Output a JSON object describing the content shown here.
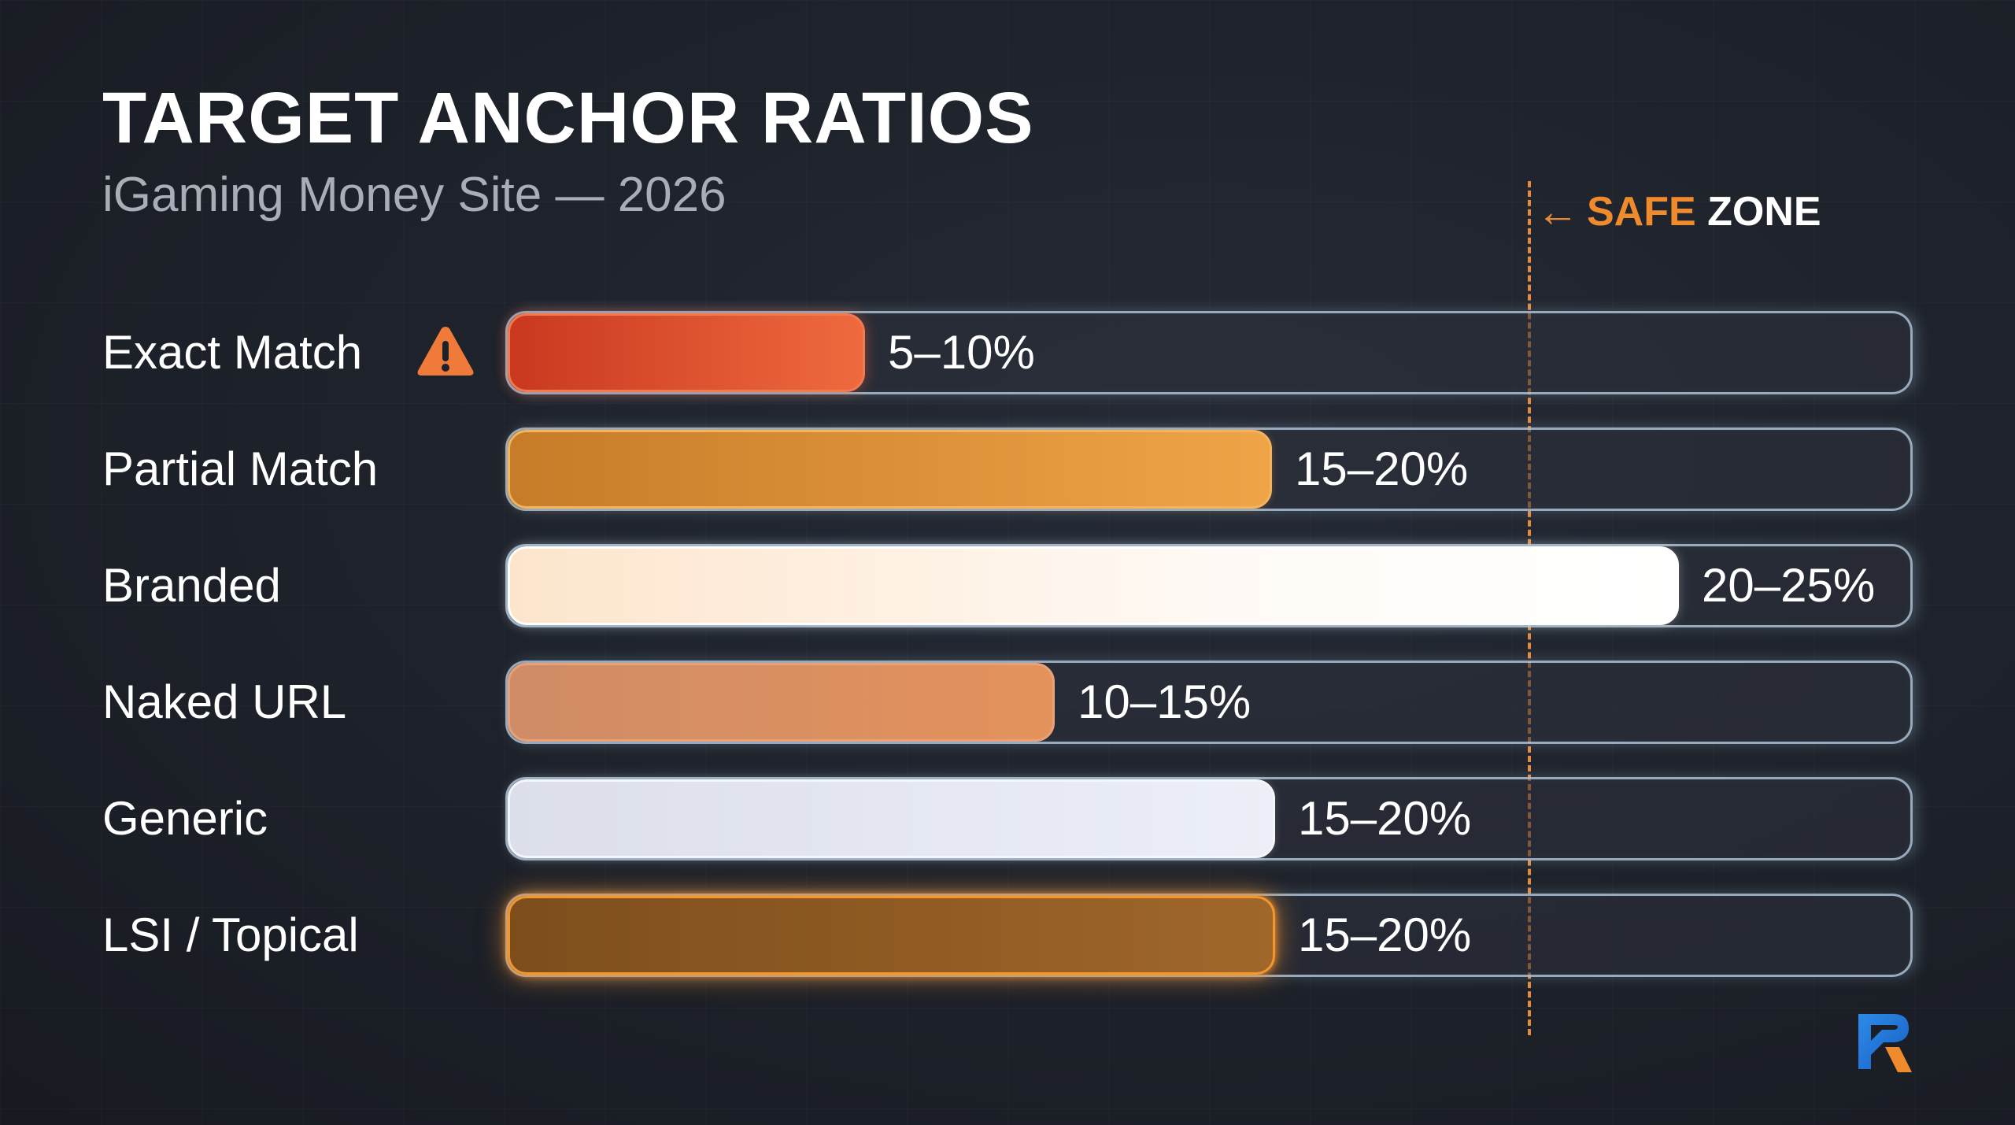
{
  "title": "TARGET ANCHOR RATIOS",
  "subtitle": "iGaming Money Site — 2026",
  "safe_zone": {
    "arrow": "←",
    "word1": "SAFE",
    "word2": "ZONE",
    "value": 0.73
  },
  "chart_data": {
    "type": "bar",
    "orientation": "horizontal",
    "title": "TARGET ANCHOR RATIOS",
    "subtitle": "iGaming Money Site — 2026",
    "categories": [
      "Exact Match",
      "Partial Match",
      "Branded",
      "Naked URL",
      "Generic",
      "LSI / Topical"
    ],
    "value_labels": [
      "5–10%",
      "15–20%",
      "20–25%",
      "10–15%",
      "15–20%",
      "15–20%"
    ],
    "values": [
      0.255,
      0.545,
      0.835,
      0.39,
      0.547,
      0.547
    ],
    "warning_on": "Exact Match",
    "reference_line": {
      "label": "SAFE ZONE",
      "value": 0.73
    },
    "colors": [
      "#e2502e",
      "#e3952f",
      "#fff5ea",
      "#d88b5c",
      "#e6e9f3",
      "#8f5a1e"
    ]
  },
  "colors": {
    "background": "#1d2129",
    "accent": "#f08b2d",
    "track_border": "#bed7eb"
  },
  "icons": {
    "warning": "warning-triangle-icon",
    "logo": "brand-logo-icon"
  }
}
